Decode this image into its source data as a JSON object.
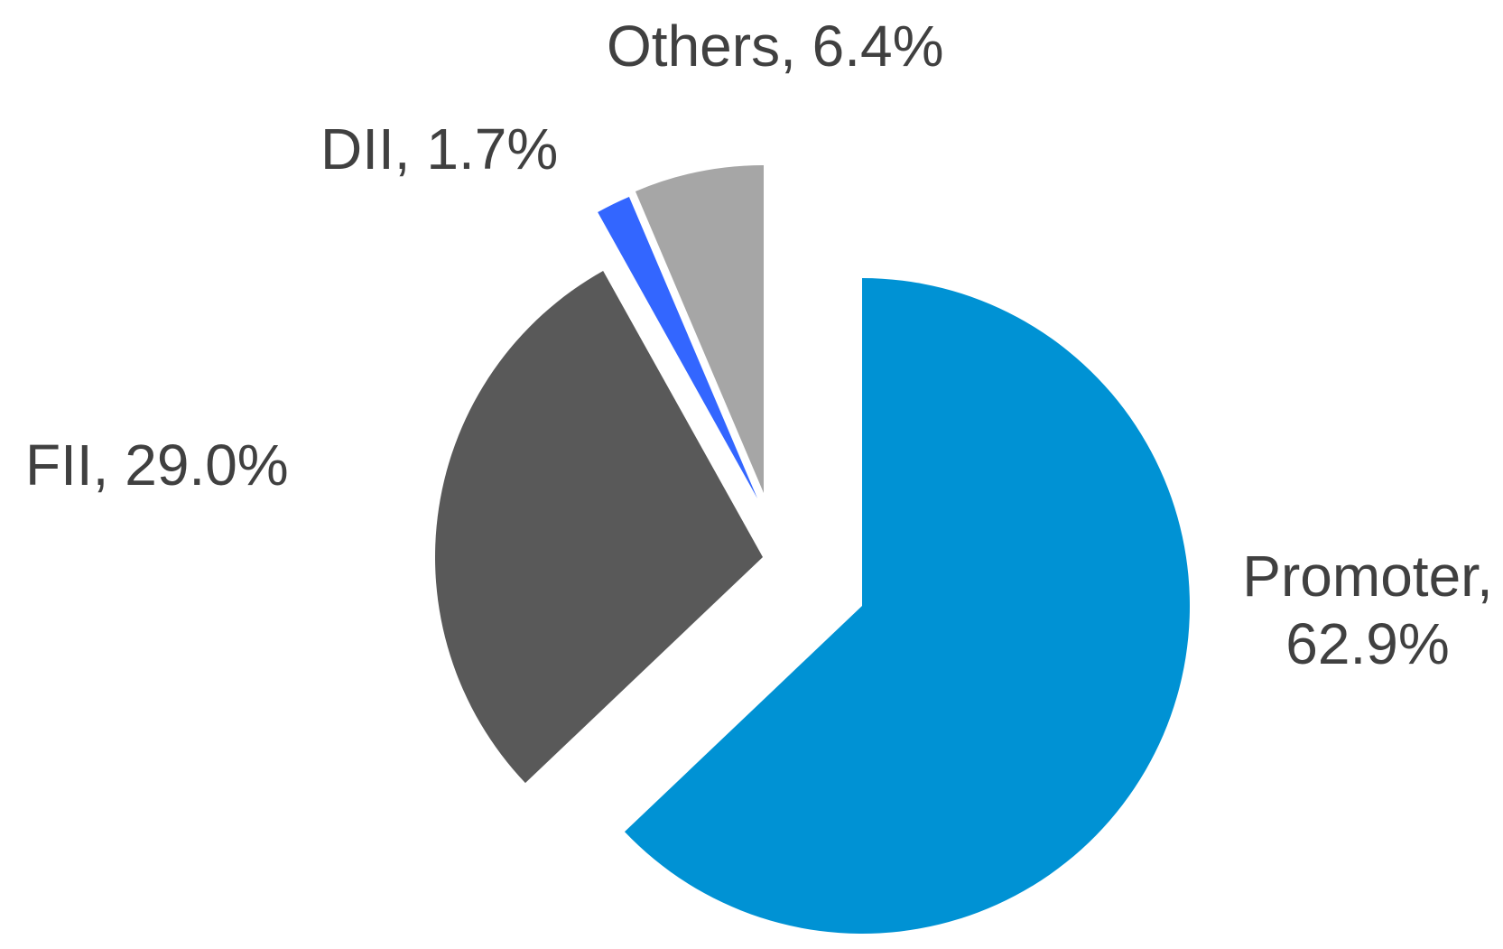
{
  "chart_data": {
    "type": "pie",
    "style": "exploded",
    "title": "",
    "slices": [
      {
        "name": "Promoter",
        "value": 62.9,
        "label_line1": "Promoter,",
        "label_line2": "62.9%",
        "color": "#0092D4"
      },
      {
        "name": "FII",
        "value": 29.0,
        "label_line1": "FII, 29.0%",
        "label_line2": "",
        "color": "#595959"
      },
      {
        "name": "DII",
        "value": 1.7,
        "label_line1": "DII, 1.7%",
        "label_line2": "",
        "color": "#3366FF"
      },
      {
        "name": "Others",
        "value": 6.4,
        "label_line1": "Others, 6.4%",
        "label_line2": "",
        "color": "#A6A6A6"
      }
    ],
    "legend": "none"
  }
}
